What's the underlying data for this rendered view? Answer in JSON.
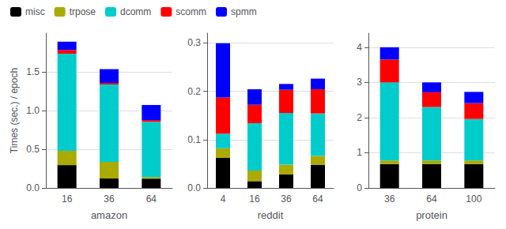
{
  "chart_data": [
    {
      "type": "bar",
      "stacked": true,
      "grid": true,
      "legend": "upper left",
      "xlabel": "amazon",
      "ylabel": "Times (sec.) / epoch",
      "categories": [
        "16",
        "36",
        "64"
      ],
      "ylim": [
        0,
        2.0
      ],
      "yticks": [
        {
          "value": 0,
          "label": "0.0"
        },
        0.5,
        {
          "value": 1,
          "label": "1.0"
        },
        1.5
      ],
      "series": [
        {
          "name": "misc",
          "color": "#000000",
          "values": [
            0.295,
            0.122,
            0.12
          ]
        },
        {
          "name": "trpose",
          "color": "#aaaa00",
          "values": [
            0.185,
            0.215,
            0.02
          ]
        },
        {
          "name": "dcomm",
          "color": "#00cccc",
          "values": [
            1.255,
            1.0,
            0.715
          ]
        },
        {
          "name": "scomm",
          "color": "#ff0000",
          "values": [
            0.048,
            0.02,
            0.022
          ]
        },
        {
          "name": "spmm",
          "color": "#0000ff",
          "values": [
            0.107,
            0.178,
            0.195
          ]
        }
      ]
    },
    {
      "type": "bar",
      "stacked": true,
      "grid": true,
      "xlabel": "reddit",
      "categories": [
        "4",
        "16",
        "36",
        "64"
      ],
      "ylim": [
        0,
        0.32
      ],
      "yticks": [
        {
          "value": 0,
          "label": "0.0"
        },
        0.1,
        0.2,
        0.3
      ],
      "series": [
        {
          "name": "misc",
          "color": "#000000",
          "values": [
            0.062,
            0.014,
            0.028,
            0.048
          ]
        },
        {
          "name": "trpose",
          "color": "#aaaa00",
          "values": [
            0.02,
            0.022,
            0.02,
            0.018
          ]
        },
        {
          "name": "dcomm",
          "color": "#00cccc",
          "values": [
            0.03,
            0.098,
            0.107,
            0.088
          ]
        },
        {
          "name": "scomm",
          "color": "#ff0000",
          "values": [
            0.075,
            0.038,
            0.048,
            0.05
          ]
        },
        {
          "name": "spmm",
          "color": "#0000ff",
          "values": [
            0.112,
            0.032,
            0.012,
            0.022
          ]
        }
      ]
    },
    {
      "type": "bar",
      "stacked": true,
      "grid": true,
      "xlabel": "protein",
      "categories": [
        "36",
        "64",
        "100"
      ],
      "ylim": [
        0,
        4.4
      ],
      "yticks": [
        0,
        1,
        2,
        3,
        4
      ],
      "series": [
        {
          "name": "misc",
          "color": "#000000",
          "values": [
            0.68,
            0.68,
            0.68
          ]
        },
        {
          "name": "trpose",
          "color": "#aaaa00",
          "values": [
            0.1,
            0.1,
            0.1
          ]
        },
        {
          "name": "dcomm",
          "color": "#00cccc",
          "values": [
            2.22,
            1.52,
            1.18
          ]
        },
        {
          "name": "scomm",
          "color": "#ff0000",
          "values": [
            0.65,
            0.42,
            0.45
          ]
        },
        {
          "name": "spmm",
          "color": "#0000ff",
          "values": [
            0.35,
            0.28,
            0.32
          ]
        }
      ]
    }
  ]
}
